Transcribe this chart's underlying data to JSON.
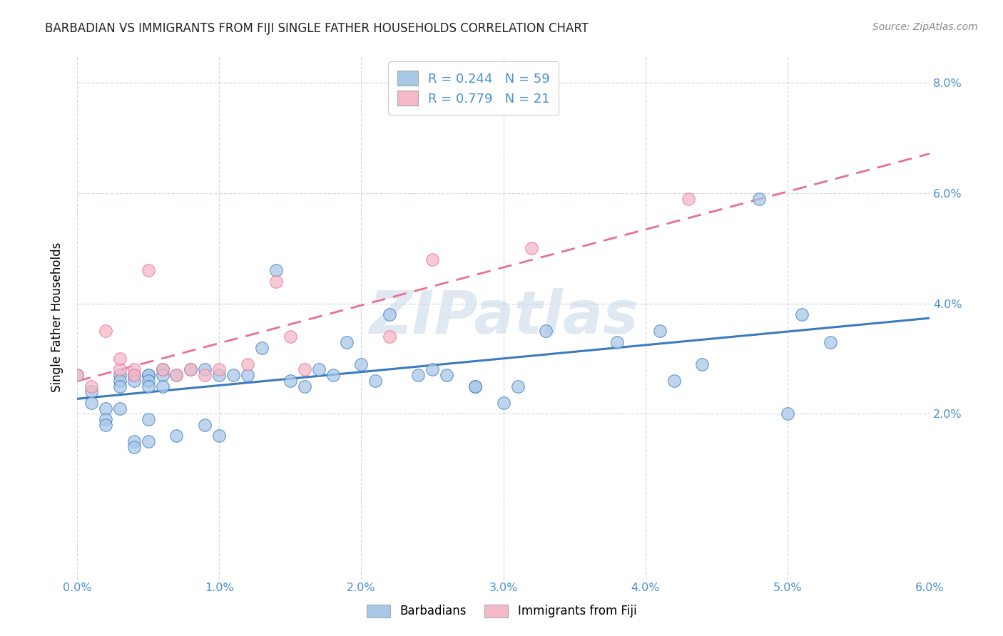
{
  "title": "BARBADIAN VS IMMIGRANTS FROM FIJI SINGLE FATHER HOUSEHOLDS CORRELATION CHART",
  "source": "Source: ZipAtlas.com",
  "ylabel": "Single Father Households",
  "xlim": [
    0.0,
    0.06
  ],
  "ylim": [
    -0.01,
    0.085
  ],
  "xtick_positions": [
    0.0,
    0.01,
    0.02,
    0.03,
    0.04,
    0.05,
    0.06
  ],
  "xtick_labels": [
    "0.0%",
    "1.0%",
    "2.0%",
    "3.0%",
    "4.0%",
    "5.0%",
    "6.0%"
  ],
  "ytick_positions": [
    0.02,
    0.04,
    0.06,
    0.08
  ],
  "ytick_labels": [
    "2.0%",
    "4.0%",
    "6.0%",
    "8.0%"
  ],
  "legend_label1": "Barbadians",
  "legend_label2": "Immigrants from Fiji",
  "R1": 0.244,
  "N1": 59,
  "R2": 0.779,
  "N2": 21,
  "color_blue": "#a8c8e8",
  "color_pink": "#f4b8c8",
  "line_color_blue": "#3a7abf",
  "line_color_pink": "#e87090",
  "tick_color": "#4a90d0",
  "blue_x": [
    0.0,
    0.001,
    0.001,
    0.002,
    0.002,
    0.002,
    0.003,
    0.003,
    0.003,
    0.003,
    0.004,
    0.004,
    0.004,
    0.004,
    0.004,
    0.005,
    0.005,
    0.005,
    0.005,
    0.005,
    0.005,
    0.006,
    0.006,
    0.006,
    0.007,
    0.007,
    0.008,
    0.009,
    0.009,
    0.01,
    0.01,
    0.011,
    0.012,
    0.013,
    0.014,
    0.015,
    0.016,
    0.017,
    0.018,
    0.019,
    0.02,
    0.021,
    0.022,
    0.024,
    0.025,
    0.026,
    0.028,
    0.028,
    0.03,
    0.031,
    0.033,
    0.038,
    0.041,
    0.042,
    0.044,
    0.048,
    0.05,
    0.051,
    0.053
  ],
  "blue_y": [
    0.027,
    0.024,
    0.022,
    0.021,
    0.019,
    0.018,
    0.027,
    0.026,
    0.025,
    0.021,
    0.027,
    0.027,
    0.026,
    0.015,
    0.014,
    0.027,
    0.027,
    0.026,
    0.025,
    0.019,
    0.015,
    0.028,
    0.027,
    0.025,
    0.027,
    0.016,
    0.028,
    0.028,
    0.018,
    0.027,
    0.016,
    0.027,
    0.027,
    0.032,
    0.046,
    0.026,
    0.025,
    0.028,
    0.027,
    0.033,
    0.029,
    0.026,
    0.038,
    0.027,
    0.028,
    0.027,
    0.025,
    0.025,
    0.022,
    0.025,
    0.035,
    0.033,
    0.035,
    0.026,
    0.029,
    0.059,
    0.02,
    0.038,
    0.033
  ],
  "pink_x": [
    0.0,
    0.001,
    0.002,
    0.003,
    0.003,
    0.004,
    0.004,
    0.005,
    0.006,
    0.007,
    0.008,
    0.009,
    0.01,
    0.012,
    0.014,
    0.015,
    0.016,
    0.022,
    0.025,
    0.032,
    0.043
  ],
  "pink_y": [
    0.027,
    0.025,
    0.035,
    0.028,
    0.03,
    0.028,
    0.027,
    0.046,
    0.028,
    0.027,
    0.028,
    0.027,
    0.028,
    0.029,
    0.044,
    0.034,
    0.028,
    0.034,
    0.048,
    0.05,
    0.059
  ],
  "watermark": "ZIPatlas",
  "background_color": "#ffffff",
  "grid_color": "#d0d8e8"
}
